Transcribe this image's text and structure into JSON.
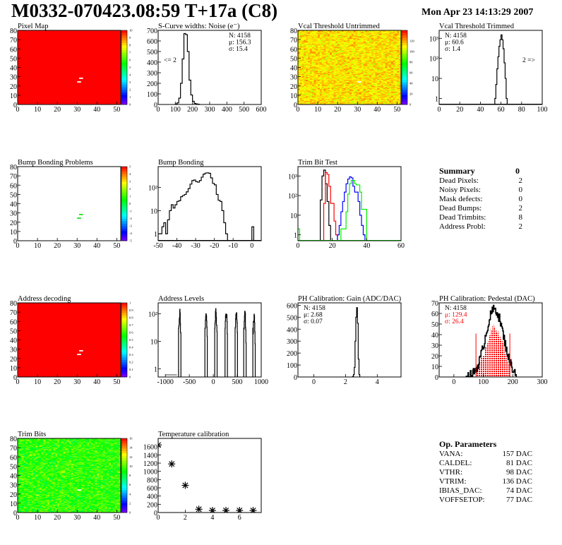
{
  "header": {
    "title": "M0332-070423.08:59 T+17a (C8)",
    "date": "Mon Apr 23 14:13:29 2007"
  },
  "summary": {
    "title": "Summary",
    "value": "0",
    "rows": [
      {
        "label": "Dead Pixels:",
        "value": "2"
      },
      {
        "label": "Noisy Pixels:",
        "value": "0"
      },
      {
        "label": "Mask defects:",
        "value": "0"
      },
      {
        "label": "Dead Bumps:",
        "value": "2"
      },
      {
        "label": "Dead Trimbits:",
        "value": "8"
      },
      {
        "label": "Address Probl:",
        "value": "2"
      }
    ]
  },
  "op_params": {
    "title": "Op. Parameters",
    "rows": [
      {
        "label": "VANA:",
        "value": "157 DAC"
      },
      {
        "label": "CALDEL:",
        "value": "81 DAC"
      },
      {
        "label": "VTHR:",
        "value": "98 DAC"
      },
      {
        "label": "VTRIM:",
        "value": "136 DAC"
      },
      {
        "label": "IBIAS_DAC:",
        "value": "74 DAC"
      },
      {
        "label": "VOFFSETOP:",
        "value": "77 DAC"
      }
    ]
  },
  "chart_data": [
    {
      "type": "heatmap",
      "title": "Pixel Map",
      "xlim": [
        0,
        52
      ],
      "ylim": [
        0,
        80
      ],
      "zlim": [
        0,
        10
      ],
      "mode": "uniform",
      "fill_value": 10,
      "xticks": [
        0,
        10,
        20,
        30,
        40,
        50
      ],
      "xtick_labels": [
        "0",
        "10",
        "20",
        "30",
        "40",
        "50"
      ],
      "yticks": [
        0,
        10,
        20,
        30,
        40,
        50,
        60,
        70,
        80
      ],
      "ytick_labels": [
        "0",
        "10",
        "20",
        "30",
        "40",
        "50",
        "60",
        "70",
        "80"
      ],
      "zticks": [
        0,
        1,
        2,
        3,
        4,
        5,
        6,
        7,
        8,
        9,
        10
      ],
      "ztick_labels": [
        "0",
        "1",
        "2",
        "3",
        "4",
        "5",
        "6",
        "7",
        "8",
        "9",
        "10"
      ],
      "special_pixels": [
        [
          30,
          24
        ],
        [
          31,
          28
        ]
      ],
      "special_color": "#ffffff"
    },
    {
      "type": "hist",
      "title": "S-Curve widths: Noise (e⁻)",
      "xlim": [
        0,
        600
      ],
      "ylim": [
        0,
        700
      ],
      "log": false,
      "xticks": [
        0,
        100,
        200,
        300,
        400,
        500,
        600
      ],
      "xtick_labels": [
        "0",
        "100",
        "200",
        "300",
        "400",
        "500",
        "600"
      ],
      "yticks": [
        0,
        100,
        200,
        300,
        400,
        500,
        600,
        700
      ],
      "ytick_labels": [
        "0",
        "100",
        "200",
        "300",
        "400",
        "500",
        "600",
        "700"
      ],
      "series": [
        {
          "color": "#000000",
          "x0": 100,
          "bw": 10,
          "values": [
            5,
            15,
            60,
            200,
            430,
            670,
            660,
            500,
            230,
            90,
            30,
            10,
            5,
            3
          ]
        }
      ],
      "stats": [
        "N: 4158",
        "μ: 156.3",
        "σ: 15.4"
      ],
      "stats_pos": "right",
      "annotation": "<= 2",
      "annotation_pos": "left"
    },
    {
      "type": "heatmap",
      "title": "Vcal Threshold Untrimmed",
      "xlim": [
        0,
        52
      ],
      "ylim": [
        0,
        80
      ],
      "zlim": [
        0,
        140
      ],
      "mode": "noise",
      "mean": 112,
      "spread": 14,
      "xticks": [
        0,
        10,
        20,
        30,
        40,
        50
      ],
      "xtick_labels": [
        "0",
        "10",
        "20",
        "30",
        "40",
        "50"
      ],
      "yticks": [
        0,
        10,
        20,
        30,
        40,
        50,
        60,
        70,
        80
      ],
      "ytick_labels": [
        "0",
        "10",
        "20",
        "30",
        "40",
        "50",
        "60",
        "70",
        "80"
      ],
      "zticks": [
        0,
        20,
        40,
        60,
        80,
        100,
        120
      ],
      "ztick_labels": [
        "0",
        "20",
        "40",
        "60",
        "80",
        "100",
        "120"
      ],
      "special_pixels": [
        [
          30,
          24
        ]
      ],
      "special_color": "#ffffff"
    },
    {
      "type": "hist",
      "title": "Vcal Threshold Trimmed",
      "xlim": [
        0,
        100
      ],
      "ylim": [
        0.5,
        2500
      ],
      "log": true,
      "xticks": [
        0,
        20,
        40,
        60,
        80,
        100
      ],
      "xtick_labels": [
        "0",
        "20",
        "40",
        "60",
        "80",
        "100"
      ],
      "yticks": [
        1,
        10,
        100,
        1000
      ],
      "ytick_labels": [
        "1",
        "10",
        "10²",
        "10³"
      ],
      "series": [
        {
          "color": "#000000",
          "x0": 54,
          "bw": 1,
          "values": [
            1,
            5,
            30,
            120,
            400,
            850,
            1500,
            850,
            300,
            60,
            10,
            1
          ]
        }
      ],
      "stats": [
        "N: 4158",
        "μ: 60.6",
        "σ:  1.4"
      ],
      "stats_pos": "left",
      "annotation": "2 =>",
      "annotation_pos": "right"
    },
    {
      "type": "heatmap",
      "title": "Bump Bonding Problems",
      "xlim": [
        0,
        52
      ],
      "ylim": [
        0,
        80
      ],
      "zlim": [
        -5,
        5
      ],
      "mode": "empty",
      "xticks": [
        0,
        10,
        20,
        30,
        40,
        50
      ],
      "xtick_labels": [
        "0",
        "10",
        "20",
        "30",
        "40",
        "50"
      ],
      "yticks": [
        0,
        10,
        20,
        30,
        40,
        50,
        60,
        70,
        80
      ],
      "ytick_labels": [
        "0",
        "10",
        "20",
        "30",
        "40",
        "50",
        "60",
        "70",
        "80"
      ],
      "zticks": [
        -5,
        -4,
        -3,
        -2,
        -1,
        0,
        1,
        2,
        3,
        4,
        5
      ],
      "ztick_labels": [
        "-5",
        "-4",
        "-3",
        "-2",
        "-1",
        "0",
        "1",
        "2",
        "3",
        "4",
        "5"
      ],
      "special_pixels": [
        [
          30,
          24
        ],
        [
          31,
          28
        ]
      ],
      "special_color": "#22dd22"
    },
    {
      "type": "hist",
      "title": "Bump Bonding",
      "xlim": [
        -50,
        5
      ],
      "ylim": [
        0.5,
        800
      ],
      "log": true,
      "xticks": [
        -50,
        -40,
        -30,
        -20,
        -10,
        0
      ],
      "xtick_labels": [
        "-50",
        "-40",
        "-30",
        "-20",
        "-10",
        "0"
      ],
      "yticks": [
        1,
        10,
        100
      ],
      "ytick_labels": [
        "1",
        "10",
        "10²"
      ],
      "series": [
        {
          "color": "#000000",
          "x0": -50,
          "bw": 1,
          "values": [
            1,
            1,
            2,
            3,
            1,
            4,
            10,
            18,
            13,
            18,
            25,
            27,
            40,
            45,
            50,
            65,
            90,
            140,
            200,
            210,
            180,
            170,
            200,
            280,
            380,
            420,
            430,
            410,
            260,
            150,
            130,
            50,
            28,
            25,
            10,
            3,
            1,
            0,
            0,
            0,
            0,
            0,
            0,
            0,
            0,
            0,
            0,
            0,
            0,
            0,
            2
          ]
        }
      ]
    },
    {
      "type": "hist",
      "title": "Trim Bit Test",
      "xlim": [
        0,
        60
      ],
      "ylim": [
        0.5,
        3000
      ],
      "log": true,
      "xticks": [
        0,
        20,
        40,
        60
      ],
      "xtick_labels": [
        "0",
        "20",
        "40",
        "60"
      ],
      "yticks": [
        1,
        10,
        100,
        1000
      ],
      "ytick_labels": [
        "1",
        "10",
        "10²",
        "10³"
      ],
      "series": [
        {
          "color": "#000000",
          "x0": 13,
          "bw": 1,
          "values": [
            60,
            1000,
            2000,
            400,
            50,
            3,
            0
          ]
        },
        {
          "color": "#ff0000",
          "x0": 15,
          "bw": 1,
          "values": [
            40,
            1500,
            1200,
            300,
            40,
            40,
            5,
            1,
            0
          ]
        },
        {
          "color": "#0000ff",
          "x0": 23,
          "bw": 1,
          "values": [
            1,
            3,
            15,
            50,
            150,
            400,
            700,
            900,
            800,
            300,
            150,
            150,
            50,
            10,
            3,
            1,
            0
          ]
        },
        {
          "color": "#00ee00",
          "x0": 0,
          "bw": 1,
          "values": [
            2,
            0,
            0,
            0,
            0,
            0,
            0,
            0,
            0,
            0,
            0,
            0,
            0,
            0,
            0,
            0,
            0,
            0,
            0,
            0,
            0,
            0,
            0,
            0,
            0,
            2,
            2,
            2,
            15,
            120,
            400,
            600,
            600,
            400,
            350,
            350,
            150,
            20,
            20,
            20,
            0
          ]
        }
      ]
    },
    {
      "type": "heatmap",
      "title": "Address decoding",
      "xlim": [
        0,
        52
      ],
      "ylim": [
        0,
        80
      ],
      "zlim": [
        0,
        1
      ],
      "mode": "uniform",
      "fill_value": 1,
      "xticks": [
        0,
        10,
        20,
        30,
        40,
        50
      ],
      "xtick_labels": [
        "0",
        "10",
        "20",
        "30",
        "40",
        "50"
      ],
      "yticks": [
        0,
        10,
        20,
        30,
        40,
        50,
        60,
        70,
        80
      ],
      "ytick_labels": [
        "0",
        "10",
        "20",
        "30",
        "40",
        "50",
        "60",
        "70",
        "80"
      ],
      "zticks": [
        0,
        0.1,
        0.2,
        0.3,
        0.4,
        0.5,
        0.6,
        0.7,
        0.8,
        0.9,
        1
      ],
      "ztick_labels": [
        "0",
        "0.1",
        "0.2",
        "0.3",
        "0.4",
        "0.5",
        "0.6",
        "0.7",
        "0.8",
        "0.9",
        "1"
      ],
      "special_pixels": [
        [
          30,
          24
        ],
        [
          31,
          28
        ]
      ],
      "special_color": "#ffffff"
    },
    {
      "type": "clusters",
      "title": "Address Levels",
      "xlim": [
        -1150,
        1000
      ],
      "ylim": [
        0.5,
        250
      ],
      "log": true,
      "xticks": [
        -1000,
        -500,
        0,
        500,
        1000
      ],
      "xtick_labels": [
        "-1000",
        "-500",
        "0",
        "500",
        "1000"
      ],
      "yticks": [
        1,
        10,
        100
      ],
      "ytick_labels": [
        "1",
        "10",
        "10²"
      ],
      "peaks": [
        [
          -700,
          130
        ],
        [
          -150,
          130
        ],
        [
          55,
          140
        ],
        [
          270,
          150
        ],
        [
          480,
          140
        ],
        [
          660,
          110
        ],
        [
          850,
          90
        ]
      ]
    },
    {
      "type": "hist",
      "title": "PH Calibration: Gain (ADC/DAC)",
      "xlim": [
        -1,
        5.5
      ],
      "ylim": [
        0,
        620
      ],
      "log": false,
      "xticks": [
        0,
        2,
        4
      ],
      "xtick_labels": [
        "0",
        "2",
        "4"
      ],
      "yticks": [
        0,
        100,
        200,
        300,
        400,
        500,
        600
      ],
      "ytick_labels": [
        "0",
        "100",
        "200",
        "300",
        "400",
        "500",
        "600"
      ],
      "series": [
        {
          "color": "#000000",
          "x0": 2.45,
          "bw": 0.05,
          "values": [
            5,
            20,
            80,
            300,
            500,
            580,
            450,
            150,
            20
          ]
        }
      ],
      "stats": [
        "N: 4158",
        "μ: 2.68",
        "σ: 0.07"
      ],
      "stats_pos": "left"
    },
    {
      "type": "pedestal",
      "title": "PH Calibration: Pedestal (DAC)",
      "xlim": [
        -50,
        300
      ],
      "ylim": [
        0,
        70
      ],
      "log": false,
      "xticks": [
        0,
        100,
        200,
        300
      ],
      "xtick_labels": [
        "0",
        "100",
        "200",
        "300"
      ],
      "yticks": [
        0,
        10,
        20,
        30,
        40,
        50,
        60,
        70
      ],
      "ytick_labels": [
        "0",
        "10",
        "20",
        "30",
        "40",
        "50",
        "60",
        "70"
      ],
      "mean": 129.4,
      "sigma": 26.4,
      "peak": 64,
      "fit_range": [
        75,
        190
      ],
      "fit_color": "#ff0000",
      "stats": [
        "N: 4158",
        "μ: 129.4",
        "σ: 26.4"
      ],
      "stats_colors": [
        "#000000",
        "#ff0000",
        "#ff0000"
      ],
      "stats_pos": "left"
    },
    {
      "type": "heatmap",
      "title": "Trim Bits",
      "xlim": [
        0,
        52
      ],
      "ylim": [
        0,
        80
      ],
      "zlim": [
        0,
        16
      ],
      "mode": "noise",
      "mean": 9.5,
      "spread": 2.2,
      "xticks": [
        0,
        10,
        20,
        30,
        40,
        50
      ],
      "xtick_labels": [
        "0",
        "10",
        "20",
        "30",
        "40",
        "50"
      ],
      "yticks": [
        0,
        10,
        20,
        30,
        40,
        50,
        60,
        70,
        80
      ],
      "ytick_labels": [
        "0",
        "10",
        "20",
        "30",
        "40",
        "50",
        "60",
        "70",
        "80"
      ],
      "zticks": [
        0,
        2,
        4,
        6,
        8,
        10,
        12,
        14,
        16
      ],
      "ztick_labels": [
        "0",
        "2",
        "4",
        "6",
        "8",
        "10",
        "12",
        "14",
        "16"
      ],
      "special_pixels": [
        [
          30,
          24
        ]
      ],
      "special_color": "#ffffff"
    },
    {
      "type": "scatter",
      "title": "Temperature calibration",
      "xlim": [
        0,
        7.6
      ],
      "ylim": [
        0,
        1800
      ],
      "log": false,
      "xticks": [
        0,
        2,
        4,
        6
      ],
      "xtick_labels": [
        "0",
        "2",
        "4",
        "6"
      ],
      "yticks": [
        0,
        200,
        400,
        600,
        800,
        1000,
        1200,
        1400,
        1600
      ],
      "ytick_labels": [
        "0",
        "200",
        "400",
        "600",
        "800",
        "1000",
        "1200",
        "1400",
        "1600"
      ],
      "x": [
        0,
        1,
        2,
        3,
        4,
        5,
        6,
        7
      ],
      "y": [
        1640,
        1180,
        660,
        80,
        50,
        50,
        50,
        50
      ]
    }
  ]
}
